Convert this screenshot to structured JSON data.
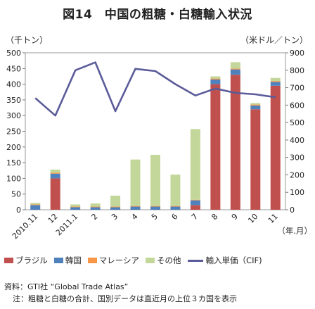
{
  "title": "図14　中国の粗糖・白糖輸入状況",
  "left_unit": "（千トン）",
  "right_unit": "（米ドル／トン）",
  "x_unit": "（年.月）",
  "source": "資料：GTI社 “Global Trade Atlas”",
  "note": "注：粗糖と白糖の合計、国別データは直近月の上位３カ国を表示",
  "colors": {
    "brazil": "#c0504d",
    "korea": "#4f81bd",
    "malaysia": "#f79646",
    "other": "#c4d79b",
    "price": "#5b5b9a"
  },
  "chart_data": {
    "type": "bar",
    "stacked": true,
    "categories": [
      "2010.11",
      "12",
      "2011.1",
      "2",
      "3",
      "4",
      "5",
      "6",
      "7",
      "8",
      "9",
      "10",
      "11"
    ],
    "series": [
      {
        "name": "ブラジル",
        "values": [
          0,
          100,
          0,
          0,
          0,
          0,
          0,
          0,
          15,
          400,
          430,
          320,
          395
        ]
      },
      {
        "name": "韓国",
        "values": [
          15,
          15,
          8,
          8,
          8,
          10,
          10,
          10,
          15,
          15,
          17,
          12,
          12
        ]
      },
      {
        "name": "マレーシア",
        "values": [
          2,
          3,
          2,
          2,
          2,
          2,
          2,
          2,
          2,
          3,
          3,
          3,
          3
        ]
      },
      {
        "name": "その他",
        "values": [
          5,
          10,
          7,
          10,
          35,
          148,
          163,
          100,
          225,
          7,
          20,
          5,
          10
        ]
      }
    ],
    "line": {
      "name": "輸入単価（CIF)",
      "axis": "right",
      "values": [
        640,
        540,
        800,
        845,
        565,
        808,
        795,
        720,
        655,
        695,
        670,
        662,
        645
      ]
    },
    "ylim": [
      0,
      500
    ],
    "y2lim": [
      0,
      900
    ],
    "yticks": [
      0,
      50,
      100,
      150,
      200,
      250,
      300,
      350,
      400,
      450,
      500
    ],
    "y2ticks": [
      0,
      100,
      200,
      300,
      400,
      500,
      600,
      700,
      800,
      900
    ],
    "grid": false,
    "legend_position": "bottom"
  }
}
